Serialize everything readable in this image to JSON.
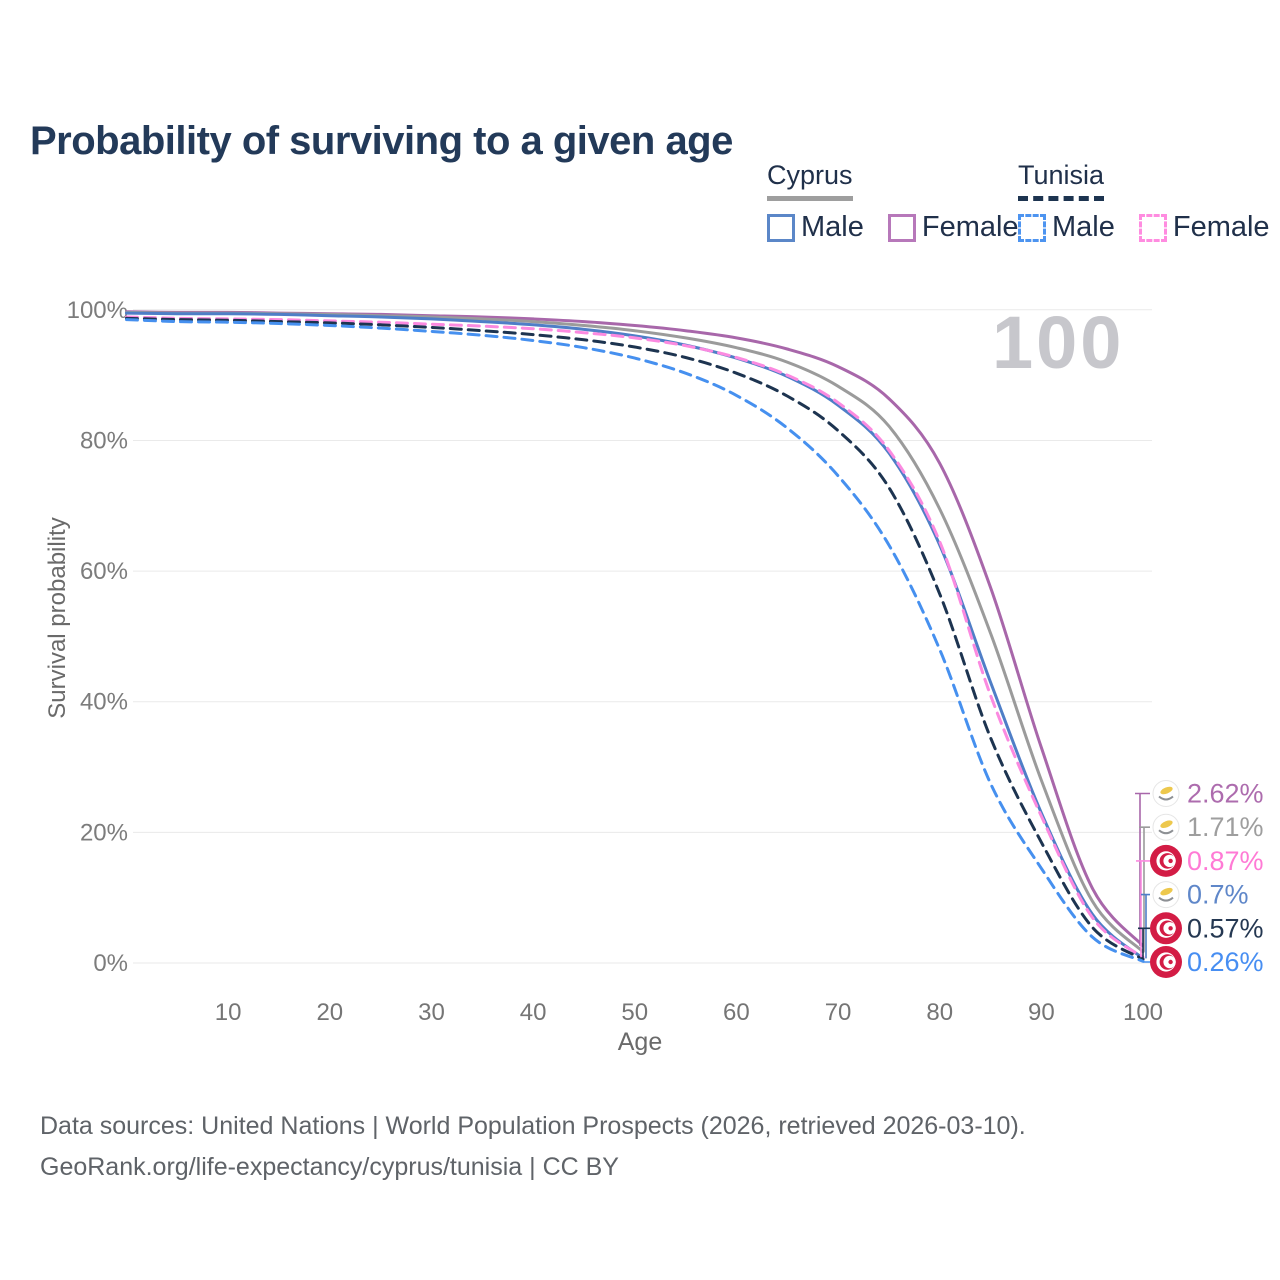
{
  "title": "Probability of surviving to a given age",
  "watermark": "100",
  "legend": {
    "groups": [
      {
        "name": "Cyprus",
        "line_style": "solid",
        "underline_color": "#9e9e9e",
        "items": [
          {
            "label": "Male",
            "color": "#5b87c8"
          },
          {
            "label": "Female",
            "color": "#b778ba"
          }
        ]
      },
      {
        "name": "Tunisia",
        "line_style": "dashed",
        "underline_color": "#1d3450",
        "items": [
          {
            "label": "Male",
            "color": "#4d94f0"
          },
          {
            "label": "Female",
            "color": "#ff8ce0"
          }
        ]
      }
    ]
  },
  "chart_data": {
    "type": "line",
    "title": "Probability of surviving to a given age",
    "xlabel": "Age",
    "ylabel": "Survival probability",
    "xlim": [
      0,
      105
    ],
    "ylim": [
      0,
      100
    ],
    "grid": "horizontal",
    "x_ticks": [
      10,
      20,
      30,
      40,
      50,
      60,
      70,
      80,
      90,
      100
    ],
    "y_ticks": [
      "0%",
      "20%",
      "40%",
      "60%",
      "80%",
      "100%"
    ],
    "x": [
      0,
      5,
      10,
      15,
      20,
      25,
      30,
      35,
      40,
      45,
      50,
      55,
      60,
      65,
      70,
      75,
      80,
      85,
      90,
      95,
      100
    ],
    "series": [
      {
        "name": "Cyprus Female",
        "country": "Cyprus",
        "sex": "Female",
        "color": "#a867aa",
        "dash": "solid",
        "flag": "cyprus-flag",
        "end_label": "2.62%",
        "end_label_color": "#ad6cae",
        "values": [
          99.7,
          99.6,
          99.6,
          99.5,
          99.4,
          99.3,
          99.1,
          98.9,
          98.6,
          98.2,
          97.6,
          96.8,
          95.7,
          94.0,
          91.3,
          86.4,
          76.5,
          57.5,
          33.0,
          11.5,
          2.62
        ]
      },
      {
        "name": "Cyprus",
        "country": "Cyprus",
        "sex": "Both",
        "color": "#9b9b9b",
        "dash": "solid",
        "flag": "cyprus-flag",
        "end_label": "1.71%",
        "end_label_color": "#9e9e9e",
        "values": [
          99.6,
          99.5,
          99.5,
          99.4,
          99.3,
          99.1,
          98.9,
          98.6,
          98.2,
          97.6,
          96.8,
          95.7,
          94.2,
          92.0,
          88.3,
          82.2,
          69.5,
          50.5,
          28.0,
          9.5,
          1.71
        ]
      },
      {
        "name": "Tunisia Female",
        "country": "Tunisia",
        "sex": "Female",
        "color": "#fb8ae0",
        "dash": "dashed",
        "flag": "tunisia-flag",
        "end_label": "0.87%",
        "end_label_color": "#ff7ad5",
        "values": [
          98.9,
          98.7,
          98.6,
          98.5,
          98.3,
          98.1,
          97.8,
          97.5,
          97.1,
          96.5,
          95.7,
          94.5,
          92.7,
          90.0,
          85.8,
          78.5,
          64.5,
          41.0,
          22.5,
          7.0,
          0.87
        ]
      },
      {
        "name": "Cyprus Male",
        "country": "Cyprus",
        "sex": "Male",
        "color": "#4f7ec7",
        "dash": "solid",
        "flag": "cyprus-flag",
        "end_label": "0.7%",
        "end_label_color": "#5f87c9",
        "values": [
          99.5,
          99.4,
          99.4,
          99.3,
          99.1,
          98.9,
          98.6,
          98.2,
          97.7,
          97.0,
          96.0,
          94.6,
          92.6,
          89.8,
          85.4,
          78.1,
          64.0,
          43.0,
          23.0,
          7.5,
          0.7
        ]
      },
      {
        "name": "Tunisia",
        "country": "Tunisia",
        "sex": "Both",
        "color": "#1d3450",
        "dash": "dashed",
        "flag": "tunisia-flag",
        "end_label": "0.57%",
        "end_label_color": "#253852",
        "values": [
          98.7,
          98.5,
          98.4,
          98.2,
          98.0,
          97.7,
          97.3,
          96.8,
          96.2,
          95.4,
          94.3,
          92.7,
          90.3,
          86.8,
          81.5,
          72.8,
          56.5,
          34.5,
          18.5,
          5.5,
          0.57
        ]
      },
      {
        "name": "Tunisia Male",
        "country": "Tunisia",
        "sex": "Male",
        "color": "#4690ef",
        "dash": "dashed",
        "flag": "tunisia-flag",
        "end_label": "0.26%",
        "end_label_color": "#478ef2",
        "values": [
          98.5,
          98.2,
          98.1,
          97.9,
          97.6,
          97.2,
          96.7,
          96.1,
          95.3,
          94.2,
          92.6,
          90.3,
          86.9,
          81.9,
          74.6,
          64.0,
          48.0,
          27.5,
          14.5,
          4.0,
          0.26
        ]
      }
    ],
    "legend_position": "top-right"
  },
  "footer": {
    "line1": "Data sources: United Nations | World Population Prospects (2026, retrieved 2026-03-10).",
    "line2": "GeoRank.org/life-expectancy/cyprus/tunisia | CC BY"
  }
}
